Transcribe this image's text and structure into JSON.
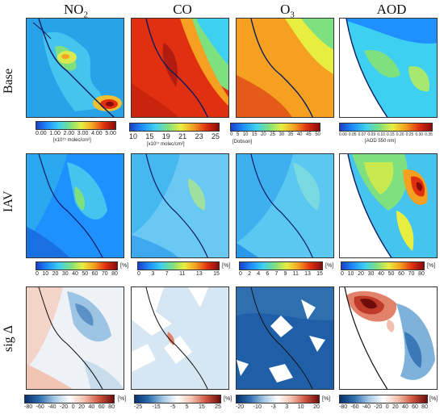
{
  "columns": [
    {
      "main": "NO",
      "sub": "2"
    },
    {
      "main": "CO",
      "sub": ""
    },
    {
      "main": "O",
      "sub": "3"
    },
    {
      "main": "AOD",
      "sub": ""
    }
  ],
  "rows": [
    "Base",
    "IAV",
    "sig Δ"
  ],
  "colorbars": {
    "base_no2": {
      "ticks": [
        "0.00",
        "1.00",
        "2.00",
        "3.00",
        "4.00",
        "5.00"
      ],
      "unit": "[x10¹⁵ molec/cm²]"
    },
    "base_co": {
      "ticks": [
        "10",
        "15",
        "19",
        "21",
        "23",
        "25"
      ],
      "unit": "[x10¹⁷ molec/cm²]"
    },
    "base_o3": {
      "ticks": [
        "0",
        "5",
        "10",
        "15",
        "20",
        "25",
        "30",
        "35",
        "40",
        "45",
        "50"
      ],
      "unit": "[Dobson]"
    },
    "base_aod": {
      "ticks": [
        "0.00",
        "0.05",
        "0.07",
        "0.09",
        "0.10",
        "0.15",
        "0.20",
        "0.25",
        "0.30",
        "0.35"
      ],
      "unit": "[AOD 550 nm]"
    },
    "iav_no2": {
      "ticks": [
        "0",
        "10",
        "20",
        "30",
        "40",
        "50",
        "60",
        "70",
        "80"
      ],
      "unit": "[%]"
    },
    "iav_co": {
      "ticks": [
        "0",
        "3",
        "7",
        "11",
        "13",
        "15"
      ],
      "unit": "[%]"
    },
    "iav_o3": {
      "ticks": [
        "0",
        "2",
        "4",
        "6",
        "7",
        "9",
        "11",
        "13",
        "15"
      ],
      "unit": "[%]"
    },
    "iav_aod": {
      "ticks": [
        "0",
        "10",
        "20",
        "30",
        "40",
        "50",
        "60",
        "70",
        "80"
      ],
      "unit": "[%]"
    },
    "sig_no2": {
      "ticks": [
        "-80",
        "-60",
        "-40",
        "-20",
        "0",
        "20",
        "40",
        "60",
        "80"
      ],
      "unit": "[%]"
    },
    "sig_co": {
      "ticks": [
        "-25",
        "-15",
        "-5",
        "5",
        "15",
        "25"
      ],
      "unit": "[%]"
    },
    "sig_o3": {
      "ticks": [
        "-20",
        "-10",
        "-3",
        "3",
        "10",
        "20"
      ],
      "unit": "[%]"
    },
    "sig_aod": {
      "ticks": [
        "-80",
        "-60",
        "-40",
        "-20",
        "0",
        "20",
        "40",
        "60",
        "80"
      ],
      "unit": "[%]"
    }
  },
  "colors": {
    "jet": [
      "#1a3fc8",
      "#1e90ff",
      "#3ed0f0",
      "#7fe07f",
      "#e8ee40",
      "#f5a020",
      "#e03010",
      "#8a0a0a"
    ],
    "diverging": [
      "#08306b",
      "#2f6fb0",
      "#7fb2da",
      "#d6e6f2",
      "#ffffff",
      "#f6d3c4",
      "#e2826a",
      "#c03a2a",
      "#6e0c0c"
    ]
  }
}
